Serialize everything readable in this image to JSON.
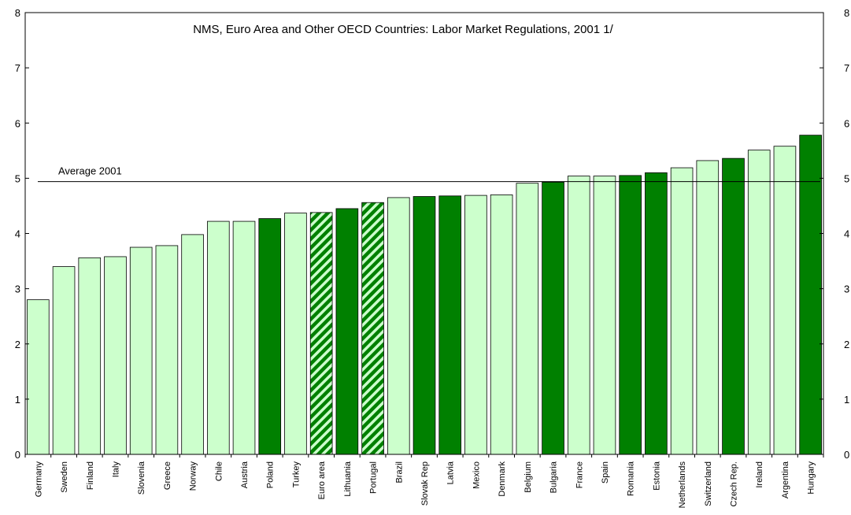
{
  "chart_data": {
    "type": "bar",
    "title": "NMS, Euro Area and Other OECD Countries: Labor Market Regulations, 2001 1/",
    "categories": [
      "Germany",
      "Sweden",
      "Finland",
      "Italy",
      "Slovenia",
      "Greece",
      "Norway",
      "Chile",
      "Austria",
      "Poland",
      "Turkey",
      "Euro area",
      "Lithuania",
      "Portugal",
      "Brazil",
      "Slovak Rep",
      "Latvia",
      "Mexico",
      "Denmark",
      "Belgium",
      "Bulgaria",
      "France",
      "Spain",
      "Romania",
      "Estonia",
      "Netherlands",
      "Switzerland",
      "Czech Rep.",
      "Ireland",
      "Argentina",
      "Hungary"
    ],
    "values": [
      2.8,
      3.4,
      3.56,
      3.58,
      3.75,
      3.78,
      3.98,
      4.22,
      4.22,
      4.27,
      4.37,
      4.38,
      4.45,
      4.56,
      4.65,
      4.67,
      4.68,
      4.69,
      4.7,
      4.91,
      4.93,
      5.04,
      5.04,
      5.05,
      5.1,
      5.19,
      5.32,
      5.36,
      5.51,
      5.58,
      5.78
    ],
    "bar_styles": [
      "light",
      "light",
      "light",
      "light",
      "light",
      "light",
      "light",
      "light",
      "light",
      "dark",
      "light",
      "hatched",
      "dark",
      "hatched",
      "light",
      "dark",
      "dark",
      "light",
      "light",
      "light",
      "dark",
      "light",
      "light",
      "dark",
      "dark",
      "light",
      "light",
      "dark",
      "light",
      "light",
      "dark"
    ],
    "reference_line": {
      "value": 4.94,
      "label": "Average 2001"
    },
    "ylim": [
      0,
      8
    ],
    "yticks": [
      "0",
      "1",
      "2",
      "3",
      "4",
      "5",
      "6",
      "7",
      "8"
    ],
    "ytick_values": [
      0,
      1,
      2,
      3,
      4,
      5,
      6,
      7,
      8
    ],
    "xlabel": "",
    "ylabel": "",
    "grid": false,
    "legend": "none",
    "colors": {
      "light": "#ccffcc",
      "dark": "#008000",
      "hatch_stripe": "#ccffcc",
      "outline": "#000000",
      "reference_line": "#000000"
    }
  }
}
